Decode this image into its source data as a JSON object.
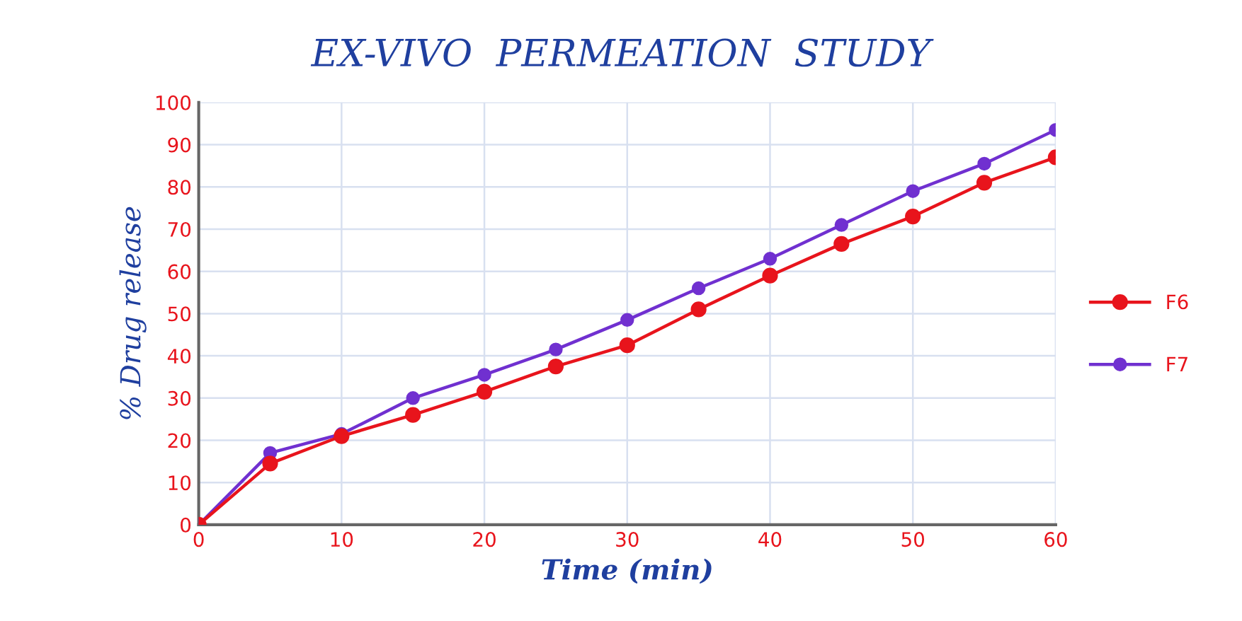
{
  "chart_data": {
    "type": "line",
    "title": "EX-VIVO  PERMEATION  STUDY",
    "xlabel": "Time (min)",
    "ylabel": "% Drug release",
    "x": [
      0,
      5,
      10,
      15,
      20,
      25,
      30,
      35,
      40,
      45,
      50,
      55,
      60
    ],
    "series": [
      {
        "name": "F6",
        "color": "#e8141c",
        "values": [
          0,
          14.5,
          21,
          26,
          31.5,
          37.5,
          42.5,
          51,
          59,
          66.5,
          73,
          81,
          87
        ]
      },
      {
        "name": "F7",
        "color": "#7030d0",
        "values": [
          0,
          17,
          21.5,
          30,
          35.5,
          41.5,
          48.5,
          56,
          63,
          71,
          79,
          85.5,
          93.5
        ]
      }
    ],
    "xlim": [
      0,
      60
    ],
    "xticks": [
      0,
      10,
      20,
      30,
      40,
      50,
      60
    ],
    "ylim": [
      0,
      100
    ],
    "yticks": [
      0,
      10,
      20,
      30,
      40,
      50,
      60,
      70,
      80,
      90,
      100
    ],
    "grid": true,
    "legend": "right",
    "marker": "circle",
    "line_style": "solid"
  }
}
